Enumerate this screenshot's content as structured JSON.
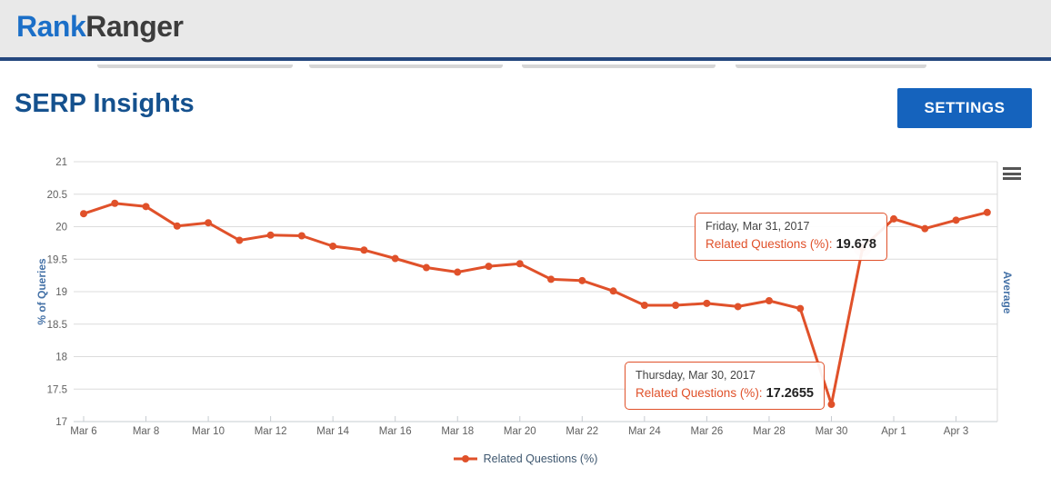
{
  "header": {
    "logo_part1": "Rank",
    "logo_part2": "Ranger",
    "logo_color1": "#1b6fc8",
    "logo_color2": "#3c3c3c",
    "bar_color": "#24477e"
  },
  "toolbar": {
    "page_title": "SERP Insights",
    "settings_label": "SETTINGS",
    "title_color": "#15518e",
    "settings_bg": "#1563bd"
  },
  "chart": {
    "y_axis_title": "% of Queries",
    "right_axis_title": "Average",
    "legend_label": "Related Questions (%)",
    "axis_title_color": "#4572a7",
    "tick_label_color": "#606060",
    "line_color": "#e0512a",
    "menu_icon": "hamburger-icon"
  },
  "tooltips": [
    {
      "date": "Friday, Mar 31, 2017",
      "label": "Related Questions (%):",
      "value": "19.678"
    },
    {
      "date": "Thursday, Mar 30, 2017",
      "label": "Related Questions (%):",
      "value": "17.2655"
    }
  ],
  "chart_data": {
    "type": "line",
    "title": "",
    "xlabel": "",
    "ylabel": "% of Queries",
    "ylim": [
      17,
      21
    ],
    "ytick_step": 0.5,
    "grid": true,
    "legend_position": "bottom",
    "x": [
      "Mar 6",
      "Mar 7",
      "Mar 8",
      "Mar 9",
      "Mar 10",
      "Mar 11",
      "Mar 12",
      "Mar 13",
      "Mar 14",
      "Mar 15",
      "Mar 16",
      "Mar 17",
      "Mar 18",
      "Mar 19",
      "Mar 20",
      "Mar 21",
      "Mar 22",
      "Mar 23",
      "Mar 24",
      "Mar 25",
      "Mar 26",
      "Mar 27",
      "Mar 28",
      "Mar 29",
      "Mar 30",
      "Mar 31",
      "Apr 1",
      "Apr 2",
      "Apr 3",
      "Apr 4"
    ],
    "x_axis_tick_labels": [
      "Mar 6",
      "Mar 8",
      "Mar 10",
      "Mar 12",
      "Mar 14",
      "Mar 16",
      "Mar 18",
      "Mar 20",
      "Mar 22",
      "Mar 24",
      "Mar 26",
      "Mar 28",
      "Mar 30",
      "Apr 1",
      "Apr 3"
    ],
    "series": [
      {
        "name": "Related Questions (%)",
        "color": "#e0512a",
        "values": [
          20.2,
          20.36,
          20.31,
          20.01,
          20.06,
          19.79,
          19.87,
          19.86,
          19.7,
          19.64,
          19.51,
          19.37,
          19.3,
          19.39,
          19.43,
          19.19,
          19.17,
          19.01,
          18.79,
          18.79,
          18.82,
          18.77,
          18.86,
          18.74,
          17.2655,
          19.678,
          20.12,
          19.97,
          20.1,
          20.22
        ]
      }
    ],
    "highlighted_point": {
      "x": "Mar 31",
      "value": 19.678
    },
    "annotated_points": [
      {
        "x": "Mar 31",
        "value": 19.678
      },
      {
        "x": "Mar 30",
        "value": 17.2655
      }
    ]
  }
}
